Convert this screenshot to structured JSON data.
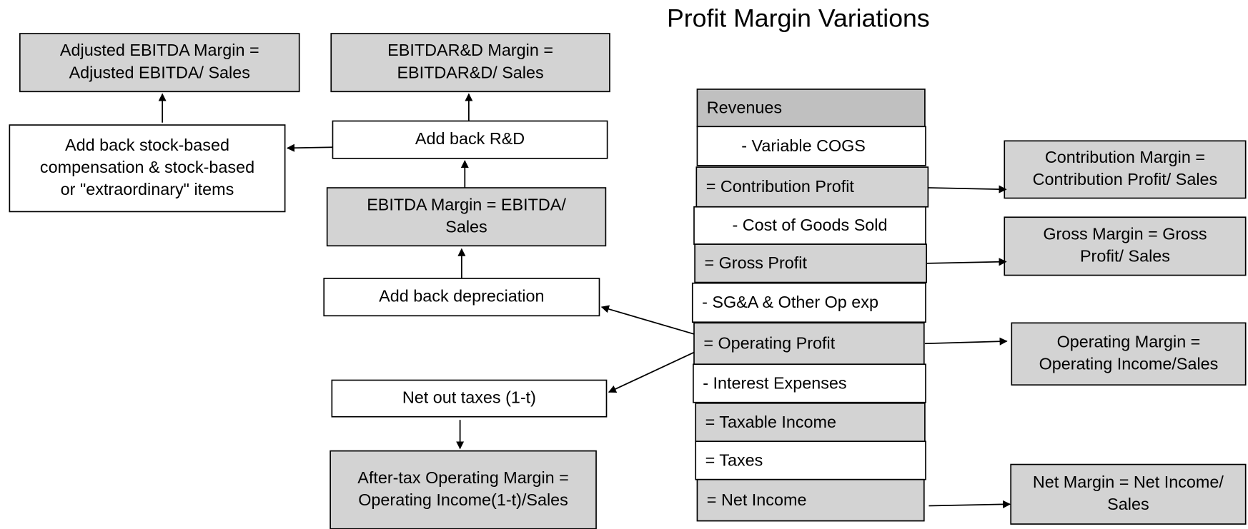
{
  "title": "Profit Margin Variations",
  "nodes": [
    {
      "lines": [
        "Adjusted EBITDA Margin =",
        "Adjusted EBITDA/ Sales"
      ]
    },
    {
      "lines": [
        "Add back stock-based",
        "compensation & stock-based",
        "or \"extraordinary\" items"
      ]
    },
    {
      "lines": [
        "EBITDAR&D Margin =",
        "EBITDAR&D/ Sales"
      ]
    },
    {
      "lines": [
        "Add back R&D"
      ]
    },
    {
      "lines": [
        "EBITDA Margin = EBITDA/",
        "Sales"
      ]
    },
    {
      "lines": [
        "Add back depreciation"
      ]
    },
    {
      "lines": [
        "Net out taxes (1-t)"
      ]
    },
    {
      "lines": [
        "After-tax Operating Margin =",
        "Operating Income(1-t)/Sales"
      ]
    },
    {
      "lines": [
        "Contribution Margin =",
        "Contribution Profit/ Sales"
      ]
    },
    {
      "lines": [
        "Gross Margin = Gross",
        "Profit/ Sales"
      ]
    },
    {
      "lines": [
        "Operating Margin =",
        "Operating Income/Sales"
      ]
    },
    {
      "lines": [
        "Net Margin = Net Income/",
        "Sales"
      ]
    }
  ],
  "statement": [
    "Revenues",
    "- Variable COGS",
    "= Contribution Profit",
    "- Cost of Goods Sold",
    "= Gross Profit",
    "- SG&A & Other Op exp",
    "= Operating Profit",
    "- Interest Expenses",
    "= Taxable Income",
    "= Taxes",
    "= Net Income"
  ]
}
